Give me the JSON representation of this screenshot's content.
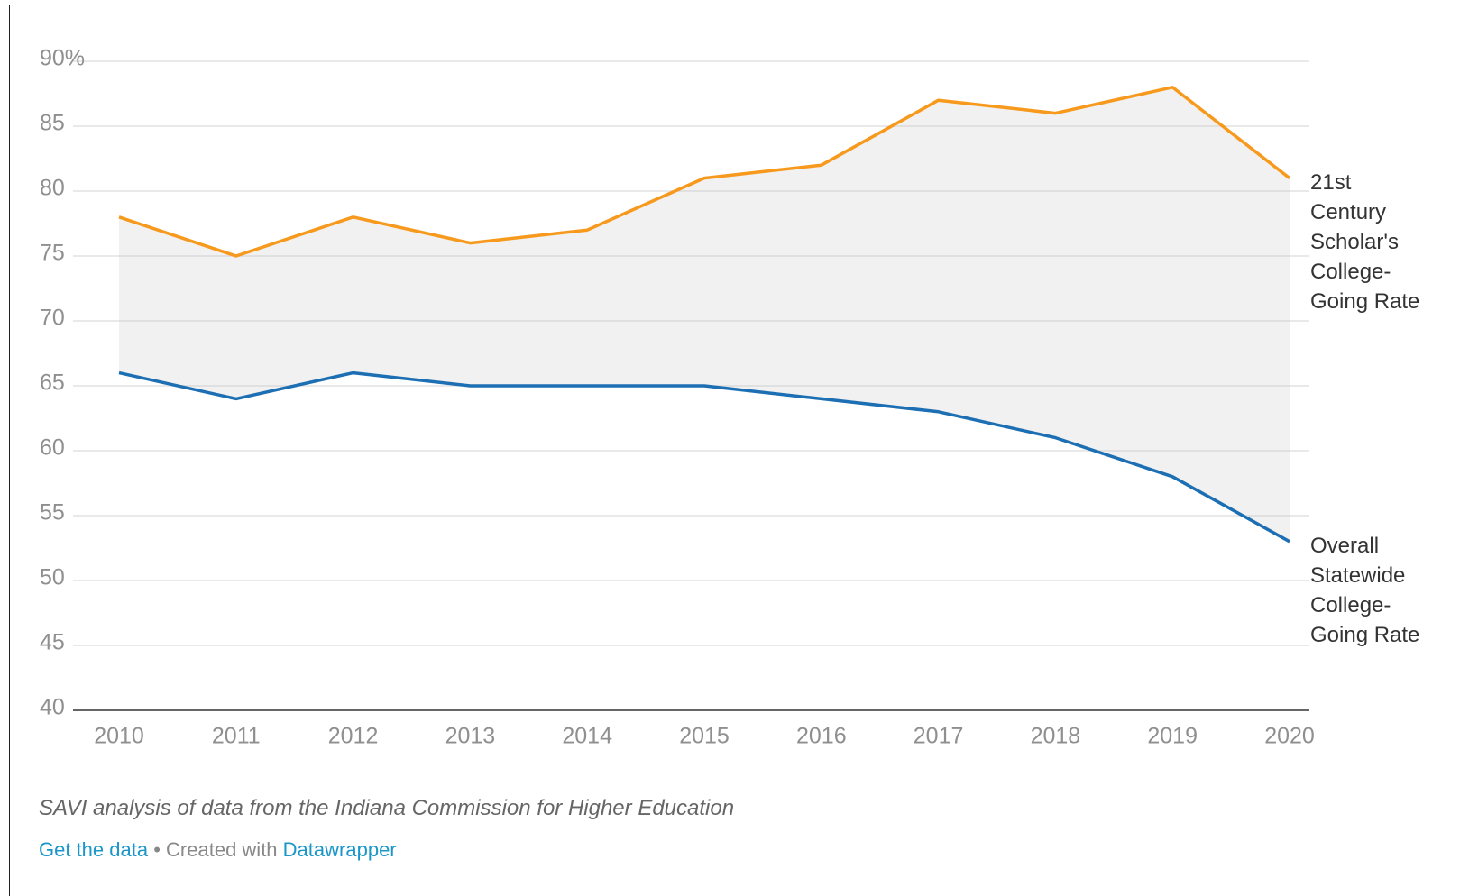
{
  "chart_data": {
    "type": "line",
    "x": [
      2010,
      2011,
      2012,
      2013,
      2014,
      2015,
      2016,
      2017,
      2018,
      2019,
      2020
    ],
    "xlim": [
      2010,
      2020
    ],
    "series": [
      {
        "name": "21st Century Scholar's College-Going Rate",
        "color": "#f7991c",
        "values": [
          78,
          75,
          78,
          76,
          77,
          81,
          82,
          87,
          86,
          88,
          81
        ]
      },
      {
        "name": "Overall Statewide College-Going Rate",
        "color": "#1d6fb3",
        "values": [
          66,
          64,
          66,
          65,
          65,
          65,
          64,
          63,
          61,
          58,
          53
        ]
      }
    ],
    "ylim": [
      40,
      90
    ],
    "yticks": [
      40,
      45,
      50,
      55,
      60,
      65,
      70,
      75,
      80,
      85,
      {
        "value": 90,
        "label": "90%"
      }
    ],
    "grid": true,
    "fill_between": true,
    "notes": "SAVI analysis of data from the Indiana Commission for Higher Education",
    "footer": {
      "data_link": "Get the data",
      "separator": "• Created with",
      "credit_link": "Datawrapper"
    }
  }
}
